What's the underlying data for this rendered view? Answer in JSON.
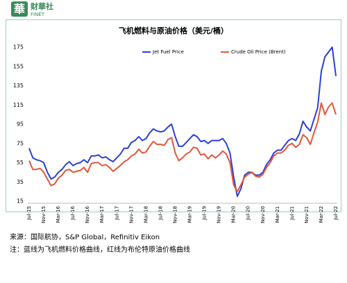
{
  "header": {
    "logo_char": "華",
    "brand": "财華社",
    "brand_en": "FINET"
  },
  "chart_data": {
    "type": "line",
    "title": "飞机燃料与原油价格（美元/桶）",
    "categories": [
      "Jul-15",
      null,
      null,
      null,
      "Nov-15",
      null,
      null,
      null,
      "Mar-16",
      null,
      null,
      null,
      "Jul-16",
      null,
      null,
      null,
      "Nov-16",
      null,
      null,
      null,
      "Mar-17",
      null,
      null,
      null,
      "Jul-17",
      null,
      null,
      null,
      "Nov-17",
      null,
      null,
      null,
      "Mar-18",
      null,
      null,
      null,
      "Jul-18",
      null,
      null,
      null,
      "Nov-18",
      null,
      null,
      null,
      "Mar-19",
      null,
      null,
      null,
      "Jul-19",
      null,
      null,
      null,
      "Nov-19",
      null,
      null,
      null,
      "Mar-20",
      null,
      null,
      null,
      "Jul-20",
      null,
      null,
      null,
      "Nov-20",
      null,
      null,
      null,
      "Mar-21",
      null,
      null,
      null,
      "Jul-21",
      null,
      null,
      null,
      "Nov-21",
      null,
      null,
      null,
      "Mar-22",
      null,
      null,
      null,
      "Jul-22"
    ],
    "series": [
      {
        "name": "Jet Fuel Price",
        "color": "#2a3fd6",
        "values": [
          70,
          60,
          58,
          57,
          55,
          45,
          38,
          40,
          45,
          48,
          53,
          56,
          52,
          54,
          55,
          58,
          55,
          62,
          62,
          63,
          60,
          61,
          58,
          56,
          60,
          64,
          70,
          70,
          76,
          78,
          82,
          78,
          80,
          86,
          90,
          88,
          87,
          88,
          92,
          95,
          82,
          72,
          72,
          76,
          80,
          84,
          82,
          77,
          78,
          75,
          78,
          78,
          78,
          80,
          75,
          65,
          40,
          20,
          28,
          42,
          45,
          45,
          42,
          42,
          45,
          53,
          58,
          65,
          68,
          68,
          73,
          78,
          80,
          78,
          85,
          98,
          92,
          88,
          100,
          112,
          150,
          165,
          170,
          175,
          145
        ]
      },
      {
        "name": "Crude Oil Price (Brent)",
        "color": "#e4543a",
        "values": [
          57,
          48,
          48,
          49,
          45,
          38,
          31,
          33,
          39,
          42,
          47,
          48,
          45,
          46,
          47,
          50,
          45,
          54,
          55,
          55,
          52,
          53,
          50,
          46,
          49,
          52,
          56,
          58,
          62,
          64,
          69,
          65,
          66,
          72,
          77,
          74,
          74,
          73,
          79,
          81,
          65,
          57,
          60,
          64,
          66,
          71,
          70,
          63,
          64,
          59,
          63,
          60,
          63,
          67,
          64,
          55,
          32,
          25,
          32,
          40,
          43,
          45,
          41,
          40,
          43,
          50,
          55,
          62,
          65,
          65,
          68,
          73,
          75,
          71,
          74,
          84,
          81,
          74,
          86,
          97,
          117,
          105,
          113,
          117,
          105
        ]
      }
    ],
    "ylim": [
      15,
      175
    ],
    "yticks": [
      15,
      35,
      55,
      75,
      95,
      115,
      135,
      155,
      175
    ]
  },
  "footer": {
    "source": "来源：国际航协，S&P Global，Refinitiv Eikon",
    "note": "注：蓝线为飞机燃料价格曲线，红线为布伦特原油价格曲线"
  }
}
